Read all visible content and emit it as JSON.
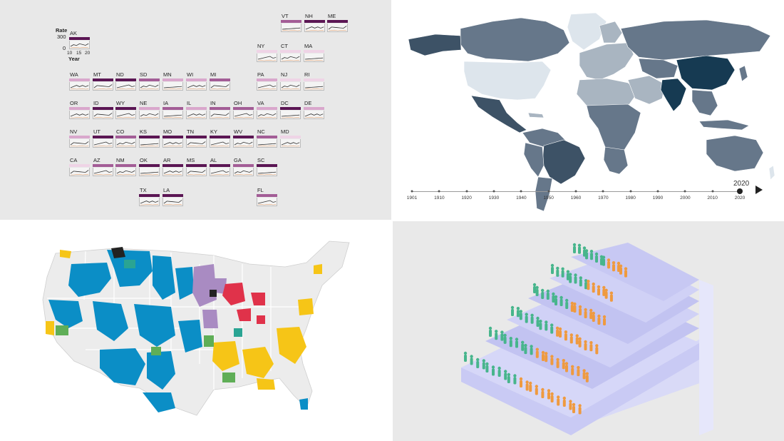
{
  "panel_tl": {
    "legend": {
      "rate_label": "Rate",
      "rate_max": "300",
      "rate_min": "0",
      "x_ticks": [
        "10",
        "15",
        "20"
      ],
      "year_label": "Year"
    },
    "colors": {
      "dark": "#5b1654",
      "mid": "#a35d96",
      "light": "#d9a7cc",
      "lighter": "#efd4e6"
    },
    "states": [
      {
        "abbr": "AK",
        "shade": "dark"
      },
      {
        "abbr": "VT",
        "shade": "mid"
      },
      {
        "abbr": "NH",
        "shade": "dark"
      },
      {
        "abbr": "ME",
        "shade": "dark"
      },
      {
        "abbr": "NY",
        "shade": "lighter"
      },
      {
        "abbr": "CT",
        "shade": "lighter"
      },
      {
        "abbr": "MA",
        "shade": "lighter"
      },
      {
        "abbr": "WA",
        "shade": "light"
      },
      {
        "abbr": "MT",
        "shade": "dark"
      },
      {
        "abbr": "ND",
        "shade": "dark"
      },
      {
        "abbr": "SD",
        "shade": "mid"
      },
      {
        "abbr": "MN",
        "shade": "light"
      },
      {
        "abbr": "WI",
        "shade": "light"
      },
      {
        "abbr": "MI",
        "shade": "mid"
      },
      {
        "abbr": "PA",
        "shade": "light"
      },
      {
        "abbr": "NJ",
        "shade": "lighter"
      },
      {
        "abbr": "RI",
        "shade": "lighter"
      },
      {
        "abbr": "OR",
        "shade": "light"
      },
      {
        "abbr": "ID",
        "shade": "dark"
      },
      {
        "abbr": "WY",
        "shade": "dark"
      },
      {
        "abbr": "NE",
        "shade": "light"
      },
      {
        "abbr": "IA",
        "shade": "mid"
      },
      {
        "abbr": "IL",
        "shade": "light"
      },
      {
        "abbr": "IN",
        "shade": "mid"
      },
      {
        "abbr": "OH",
        "shade": "mid"
      },
      {
        "abbr": "VA",
        "shade": "light"
      },
      {
        "abbr": "DC",
        "shade": "dark"
      },
      {
        "abbr": "DE",
        "shade": "light"
      },
      {
        "abbr": "NV",
        "shade": "light"
      },
      {
        "abbr": "UT",
        "shade": "dark"
      },
      {
        "abbr": "CO",
        "shade": "mid"
      },
      {
        "abbr": "KS",
        "shade": "dark"
      },
      {
        "abbr": "MO",
        "shade": "dark"
      },
      {
        "abbr": "TN",
        "shade": "dark"
      },
      {
        "abbr": "KY",
        "shade": "dark"
      },
      {
        "abbr": "WV",
        "shade": "dark"
      },
      {
        "abbr": "NC",
        "shade": "mid"
      },
      {
        "abbr": "MD",
        "shade": "lighter"
      },
      {
        "abbr": "CA",
        "shade": "lighter"
      },
      {
        "abbr": "AZ",
        "shade": "mid"
      },
      {
        "abbr": "NM",
        "shade": "mid"
      },
      {
        "abbr": "OK",
        "shade": "dark"
      },
      {
        "abbr": "AR",
        "shade": "dark"
      },
      {
        "abbr": "MS",
        "shade": "dark"
      },
      {
        "abbr": "AL",
        "shade": "dark"
      },
      {
        "abbr": "GA",
        "shade": "mid"
      },
      {
        "abbr": "SC",
        "shade": "dark"
      },
      {
        "abbr": "TX",
        "shade": "dark"
      },
      {
        "abbr": "LA",
        "shade": "dark"
      },
      {
        "abbr": "FL",
        "shade": "mid"
      }
    ]
  },
  "panel_tr": {
    "year_display": "2020",
    "timeline_ticks": [
      "1901",
      "1910",
      "1920",
      "1930",
      "1940",
      "1950",
      "1960",
      "1970",
      "1980",
      "1990",
      "2000",
      "2010",
      "2020"
    ],
    "colors": {
      "darkest": "#163a52",
      "dark": "#3d5266",
      "mid": "#66778a",
      "light": "#a9b5c1",
      "pale": "#dde5ec",
      "line": "#e0e0e0"
    }
  },
  "panel_bl": {
    "colors": {
      "blue": "#0b8ec6",
      "yellow": "#f6c517",
      "purple": "#a98bc2",
      "red": "#e0324a",
      "green": "#5fae57",
      "teal": "#2aa493",
      "land": "#ececec",
      "border": "#ffffff"
    }
  },
  "panel_br": {
    "colors": {
      "stair": "#cfd0f5",
      "stair_side": "#b8b9ec",
      "green": "#47b58c",
      "orange": "#ef9a3f"
    }
  }
}
